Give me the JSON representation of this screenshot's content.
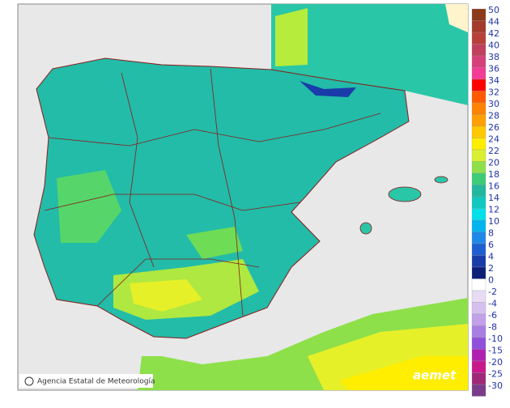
{
  "legend": {
    "positive": [
      {
        "label": 50,
        "color": "#8b3a1a"
      },
      {
        "label": 44,
        "color": "#a33a2a"
      },
      {
        "label": 42,
        "color": "#b8403a"
      },
      {
        "label": 40,
        "color": "#c0405e"
      },
      {
        "label": 38,
        "color": "#d6407a"
      },
      {
        "label": 36,
        "color": "#f23c96"
      },
      {
        "label": 34,
        "color": "#ff0000"
      },
      {
        "label": 32,
        "color": "#ff5a00"
      },
      {
        "label": 30,
        "color": "#ff8200"
      },
      {
        "label": 28,
        "color": "#ffa000"
      },
      {
        "label": 26,
        "color": "#ffc800"
      },
      {
        "label": 24,
        "color": "#ffee00"
      },
      {
        "label": 22,
        "color": "#d8f030"
      },
      {
        "label": 20,
        "color": "#8ee04a"
      },
      {
        "label": 18,
        "color": "#3ccc78"
      },
      {
        "label": 16,
        "color": "#22b8a0"
      },
      {
        "label": 14,
        "color": "#10c8c0"
      },
      {
        "label": 12,
        "color": "#00e0e8"
      },
      {
        "label": 10,
        "color": "#00b4f0"
      },
      {
        "label": 8,
        "color": "#1e88e8"
      },
      {
        "label": 6,
        "color": "#1e5ed0"
      },
      {
        "label": 4,
        "color": "#1a3ca8"
      },
      {
        "label": 2,
        "color": "#0c1e78"
      },
      {
        "label": 0,
        "color": "#ffffff"
      }
    ],
    "negative": [
      {
        "label": -2,
        "color": "#e8dcf4"
      },
      {
        "label": -4,
        "color": "#d6c0f0"
      },
      {
        "label": -6,
        "color": "#c2a0ea"
      },
      {
        "label": -8,
        "color": "#a87ee2"
      },
      {
        "label": -10,
        "color": "#9050dc"
      },
      {
        "label": -15,
        "color": "#b020b0"
      },
      {
        "label": -20,
        "color": "#c8188c"
      },
      {
        "label": -25,
        "color": "#a02878"
      },
      {
        "label": -30,
        "color": "#7a3c8a"
      }
    ]
  },
  "footer": {
    "agency": "Agencia Estatal de Meteorología",
    "logo": "aemet"
  }
}
